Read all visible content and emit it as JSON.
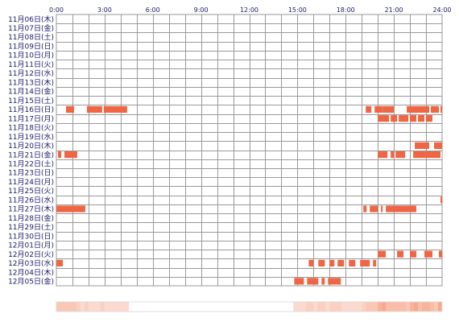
{
  "chart_data": {
    "type": "heatmap",
    "x_ticks": [
      "0:00",
      "3:00",
      "6:00",
      "9:00",
      "12:00",
      "15:00",
      "18:00",
      "21:00",
      "24:00"
    ],
    "xlim": [
      0,
      24
    ],
    "rows": [
      {
        "label": "11月06日(木)",
        "segments": []
      },
      {
        "label": "11月07日(金)",
        "segments": []
      },
      {
        "label": "11月08日(土)",
        "segments": []
      },
      {
        "label": "11月09日(日)",
        "segments": []
      },
      {
        "label": "11月10日(月)",
        "segments": []
      },
      {
        "label": "11月11日(火)",
        "segments": []
      },
      {
        "label": "11月12日(水)",
        "segments": []
      },
      {
        "label": "11月13日(木)",
        "segments": []
      },
      {
        "label": "11月14日(金)",
        "segments": []
      },
      {
        "label": "11月15日(土)",
        "segments": []
      },
      {
        "label": "11月16日(日)",
        "segments": [
          [
            0.6,
            1.1
          ],
          [
            1.9,
            2.85
          ],
          [
            2.95,
            4.4
          ],
          [
            19.25,
            19.6
          ],
          [
            19.8,
            20.3
          ],
          [
            20.3,
            21.0
          ],
          [
            21.8,
            23.2
          ],
          [
            23.3,
            23.8
          ],
          [
            23.9,
            24.0
          ]
        ]
      },
      {
        "label": "11月17日(月)",
        "segments": [
          [
            20.0,
            20.7
          ],
          [
            20.8,
            21.2
          ],
          [
            21.3,
            21.9
          ],
          [
            22.0,
            22.4
          ],
          [
            22.5,
            22.9
          ],
          [
            23.0,
            23.4
          ]
        ]
      },
      {
        "label": "11月18日(火)",
        "segments": []
      },
      {
        "label": "11月19日(水)",
        "segments": []
      },
      {
        "label": "11月20日(木)",
        "segments": [
          [
            22.3,
            23.2
          ],
          [
            23.5,
            24.0
          ]
        ]
      },
      {
        "label": "11月21日(金)",
        "segments": [
          [
            0.1,
            0.3
          ],
          [
            0.5,
            1.3
          ],
          [
            20.0,
            20.6
          ],
          [
            20.8,
            21.0
          ],
          [
            21.1,
            21.7
          ],
          [
            22.2,
            23.9
          ]
        ]
      },
      {
        "label": "11月22日(土)",
        "segments": []
      },
      {
        "label": "11月23日(日)",
        "segments": []
      },
      {
        "label": "11月24日(月)",
        "segments": []
      },
      {
        "label": "11月25日(火)",
        "segments": []
      },
      {
        "label": "11月26日(水)",
        "segments": [
          [
            23.9,
            24.0
          ]
        ]
      },
      {
        "label": "11月27日(木)",
        "segments": [
          [
            0.0,
            1.8
          ],
          [
            19.1,
            19.3
          ],
          [
            19.5,
            20.0
          ],
          [
            20.2,
            20.3
          ],
          [
            20.5,
            22.4
          ]
        ]
      },
      {
        "label": "11月28日(金)",
        "segments": []
      },
      {
        "label": "11月29日(土)",
        "segments": []
      },
      {
        "label": "11月30日(日)",
        "segments": []
      },
      {
        "label": "12月01日(月)",
        "segments": []
      },
      {
        "label": "12月02日(火)",
        "segments": [
          [
            20.0,
            20.5
          ],
          [
            21.2,
            21.6
          ],
          [
            22.0,
            22.4
          ],
          [
            22.9,
            23.4
          ],
          [
            23.8,
            24.0
          ]
        ]
      },
      {
        "label": "12月03日(水)",
        "segments": [
          [
            0.0,
            0.4
          ],
          [
            15.7,
            16.0
          ],
          [
            16.3,
            16.7
          ],
          [
            17.0,
            17.3
          ],
          [
            17.5,
            17.9
          ],
          [
            18.2,
            18.6
          ],
          [
            18.9,
            19.5
          ],
          [
            19.7,
            19.9
          ]
        ]
      },
      {
        "label": "12月04日(木)",
        "segments": []
      },
      {
        "label": "12月05日(金)",
        "segments": [
          [
            14.8,
            15.4
          ],
          [
            15.6,
            16.3
          ],
          [
            16.5,
            16.7
          ],
          [
            16.9,
            17.7
          ]
        ]
      }
    ],
    "colors": {
      "bar": "#ee6644",
      "grid": "#999999",
      "label": "#1a1a66",
      "summary_low": "#fde4dc",
      "summary_high": "#f7a98e"
    }
  }
}
